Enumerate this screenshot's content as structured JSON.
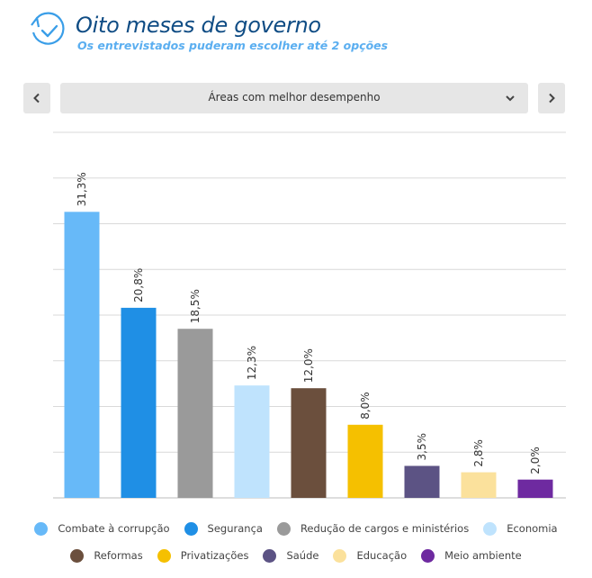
{
  "header": {
    "title": "Oito meses de governo",
    "subtitle": "Os entrevistados puderam escolher até 2 opções"
  },
  "selector": {
    "label": "Áreas com melhor desempenho"
  },
  "colors": {
    "title": "#0f4c84",
    "subtitle": "#5aaef0",
    "accent": "#3a9ee8",
    "control_bg": "#e6e6e6",
    "grid": "#d9d9d9"
  },
  "chart_data": {
    "type": "bar",
    "title": "Áreas com melhor desempenho",
    "ylabel": "",
    "xlabel": "",
    "ylim": [
      0,
      40
    ],
    "grid": true,
    "legend_placement": "bottom",
    "categories": [
      "Combate à corrupção",
      "Segurança",
      "Redução de cargos e ministérios",
      "Economia",
      "Reformas",
      "Privatizações",
      "Saúde",
      "Educação",
      "Meio ambiente"
    ],
    "values": [
      31.3,
      20.8,
      18.5,
      12.3,
      12.0,
      8.0,
      3.5,
      2.8,
      2.0
    ],
    "labels": [
      "31,3%",
      "20,8%",
      "18,5%",
      "12,3%",
      "12,0%",
      "8,0%",
      "3,5%",
      "2,8%",
      "2,0%"
    ],
    "colors": [
      "#67b9f8",
      "#1f8fe5",
      "#9a9a9a",
      "#bfe3fd",
      "#6b4f3d",
      "#f5c000",
      "#5c5384",
      "#fbe19c",
      "#6e2aa0"
    ]
  }
}
